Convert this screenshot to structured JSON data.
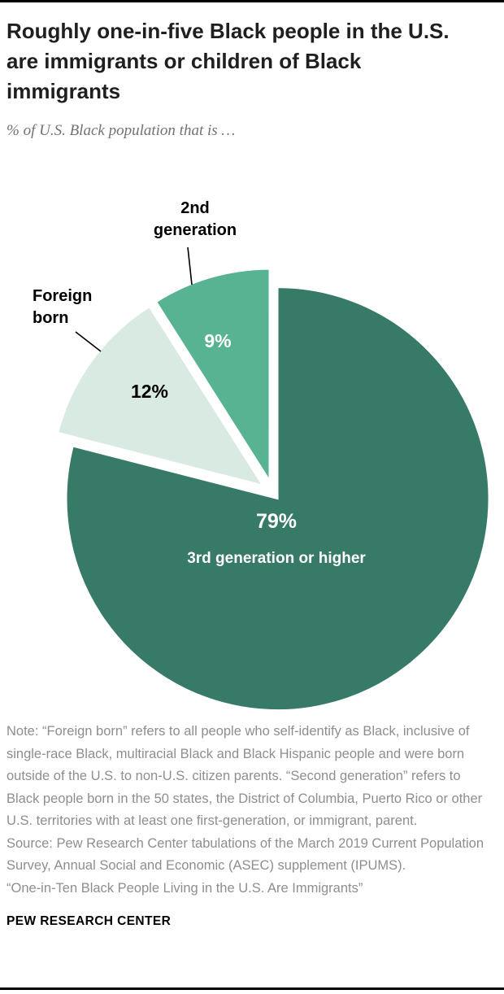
{
  "header": {
    "title": "Roughly one-in-five Black people in the U.S. are immigrants or children of Black immigrants",
    "subtitle": "% of U.S. Black population that is …"
  },
  "chart_data": {
    "type": "pie",
    "title": "% of U.S. Black population that is …",
    "direction": "clockwise",
    "start_angle_deg": 0,
    "legend_position": "none",
    "slices": [
      {
        "label": "3rd generation or higher",
        "value": 79,
        "value_label": "79%",
        "color": "#377a68",
        "text_color": "#ffffff",
        "label_placement": "inside"
      },
      {
        "label": "Foreign born",
        "value": 12,
        "value_label": "12%",
        "color": "#d9eae2",
        "text_color": "#000000",
        "label_placement": "callout"
      },
      {
        "label": "2nd generation",
        "value": 9,
        "value_label": "9%",
        "color": "#57b391",
        "text_color": "#ffffff",
        "label_placement": "callout"
      }
    ]
  },
  "footer": {
    "note": "Note: “Foreign born” refers to all people who self-identify as Black, inclusive of single-race Black, multiracial Black and Black Hispanic people and were born outside of the U.S. to non-U.S. citizen parents. “Second generation” refers to Black people born in the 50 states, the District of Columbia, Puerto Rico or other U.S. territories with at least one first-generation, or immigrant, parent.",
    "source": "Source: Pew Research Center tabulations of the March 2019 Current Population Survey, Annual Social and Economic (ASEC) supplement (IPUMS).",
    "citation": "“One-in-Ten Black People Living in the U.S. Are Immigrants”",
    "brand": "PEW RESEARCH CENTER"
  }
}
